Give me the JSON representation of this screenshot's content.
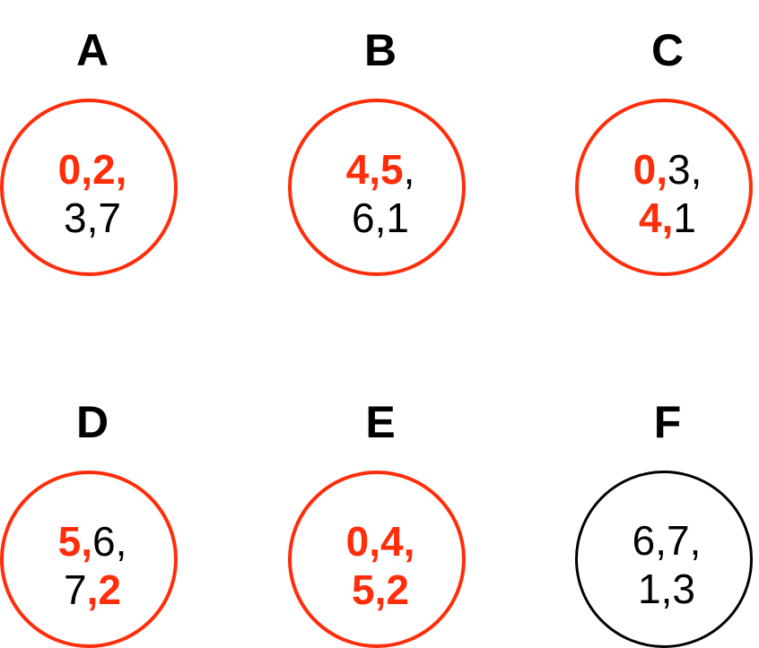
{
  "accent_color": "#ff2d0a",
  "text_color": "#000000",
  "nodes": [
    {
      "letter": "A",
      "highlighted": true,
      "lines": [
        [
          {
            "t": "0,2,",
            "hl": true
          }
        ],
        [
          {
            "t": "3,7",
            "hl": false
          }
        ]
      ]
    },
    {
      "letter": "B",
      "highlighted": true,
      "lines": [
        [
          {
            "t": "4,5",
            "hl": true
          },
          {
            "t": ",",
            "hl": false
          }
        ],
        [
          {
            "t": "6,1",
            "hl": false
          }
        ]
      ]
    },
    {
      "letter": "C",
      "highlighted": true,
      "lines": [
        [
          {
            "t": "0,",
            "hl": true
          },
          {
            "t": "3,",
            "hl": false
          }
        ],
        [
          {
            "t": "4,",
            "hl": true
          },
          {
            "t": "1",
            "hl": false
          }
        ]
      ]
    },
    {
      "letter": "D",
      "highlighted": true,
      "lines": [
        [
          {
            "t": "5,",
            "hl": true
          },
          {
            "t": "6,",
            "hl": false
          }
        ],
        [
          {
            "t": "7",
            "hl": false
          },
          {
            "t": ",2",
            "hl": true
          }
        ]
      ]
    },
    {
      "letter": "E",
      "highlighted": true,
      "lines": [
        [
          {
            "t": "0,4,",
            "hl": true
          }
        ],
        [
          {
            "t": "5,2",
            "hl": true
          }
        ]
      ]
    },
    {
      "letter": "F",
      "highlighted": false,
      "lines": [
        [
          {
            "t": "6,7,",
            "hl": false
          }
        ],
        [
          {
            "t": "1,3",
            "hl": false
          }
        ]
      ]
    }
  ]
}
